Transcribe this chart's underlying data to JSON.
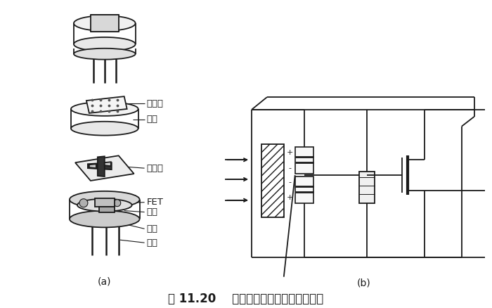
{
  "title": "图 11.20    热释电人体红外传感器的结构",
  "label_a": "(a)",
  "label_b": "(b)",
  "bg_color": "#ffffff",
  "line_color": "#1a1a1a",
  "labels": {
    "filter": "滤光片",
    "cap": "管帽",
    "sensitive": "敏感元",
    "fet": "FET",
    "socket": "管座",
    "resistor": "高阻",
    "wire": "引线"
  },
  "font_size_label": 9.5,
  "font_size_title": 12
}
